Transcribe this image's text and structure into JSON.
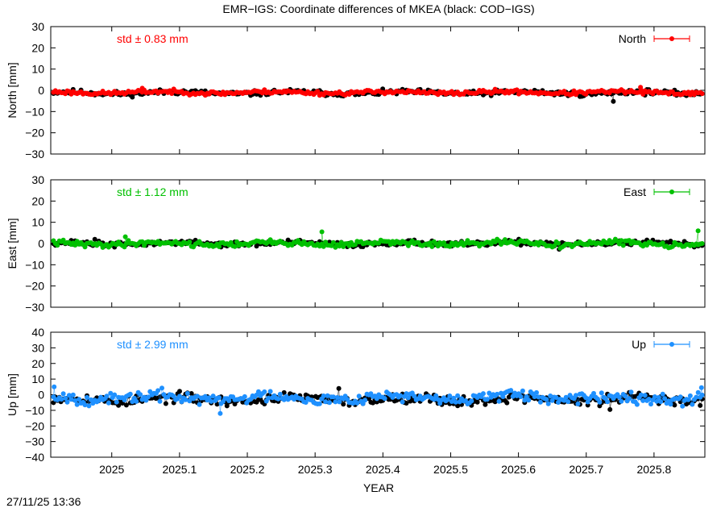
{
  "title": "EMR−IGS: Coordinate differences of MKEA (black: COD−IGS)",
  "timestamp": "27/11/25 13:36",
  "chart_data": [
    {
      "type": "scatter",
      "ylabel": "North [mm]",
      "ylim": [
        -30,
        30
      ],
      "yticks": [
        -30,
        -20,
        -10,
        0,
        10,
        20,
        30
      ],
      "xlim": [
        2024.91,
        2025.875
      ],
      "std_label": "std ± 0.83 mm",
      "series": [
        {
          "name": "",
          "color": "#000000",
          "base": -1.2,
          "noise": 1.0,
          "seed": 11,
          "spikes": [
            [
              2025.74,
              -5.2
            ],
            [
              2025.835,
              -1.0
            ]
          ]
        },
        {
          "name": "North",
          "color": "#ff0000",
          "base": -1.0,
          "noise": 0.8,
          "seed": 23,
          "spikes": [
            [
              2025.045,
              1.0
            ],
            [
              2025.78,
              1.4
            ]
          ]
        }
      ],
      "legend": "top-right"
    },
    {
      "type": "scatter",
      "ylabel": "East [mm]",
      "ylim": [
        -30,
        30
      ],
      "yticks": [
        -30,
        -20,
        -10,
        0,
        10,
        20,
        30
      ],
      "xlim": [
        2024.91,
        2025.875
      ],
      "std_label": "std ± 1.12 mm",
      "series": [
        {
          "name": "",
          "color": "#000000",
          "base": 0.0,
          "noise": 1.0,
          "seed": 37,
          "spikes": [
            [
              2024.975,
              2.0
            ],
            [
              2025.66,
              -2.7
            ]
          ]
        },
        {
          "name": "East",
          "color": "#00c000",
          "base": 0.0,
          "noise": 1.1,
          "seed": 41,
          "spikes": [
            [
              2025.31,
              5.5
            ],
            [
              2025.865,
              6.0
            ],
            [
              2025.02,
              3.2
            ]
          ]
        }
      ],
      "legend": "top-right"
    },
    {
      "type": "scatter",
      "ylabel": "Up [mm]",
      "ylim": [
        -40,
        40
      ],
      "yticks": [
        -40,
        -30,
        -20,
        -10,
        0,
        10,
        20,
        30,
        40
      ],
      "xlim": [
        2024.91,
        2025.875
      ],
      "std_label": "std ± 2.99 mm",
      "series": [
        {
          "name": "",
          "color": "#000000",
          "base": -3.0,
          "noise": 2.6,
          "seed": 53,
          "spikes": [
            [
              2025.335,
              4.0
            ],
            [
              2025.735,
              -9.5
            ],
            [
              2024.925,
              -4.5
            ]
          ]
        },
        {
          "name": "Up",
          "color": "#1e90ff",
          "base": -2.0,
          "noise": 3.0,
          "seed": 67,
          "spikes": [
            [
              2025.16,
              -12.0
            ],
            [
              2024.915,
              5.0
            ],
            [
              2025.87,
              4.5
            ]
          ]
        }
      ],
      "legend": "top-right"
    }
  ],
  "xaxis": {
    "label": "YEAR",
    "ticks": [
      2025,
      2025.1,
      2025.2,
      2025.3,
      2025.4,
      2025.5,
      2025.6,
      2025.7,
      2025.8
    ],
    "tick_labels": [
      "2025",
      "2025.1",
      "2025.2",
      "2025.3",
      "2025.4",
      "2025.5",
      "2025.6",
      "2025.7",
      "2025.8"
    ]
  }
}
